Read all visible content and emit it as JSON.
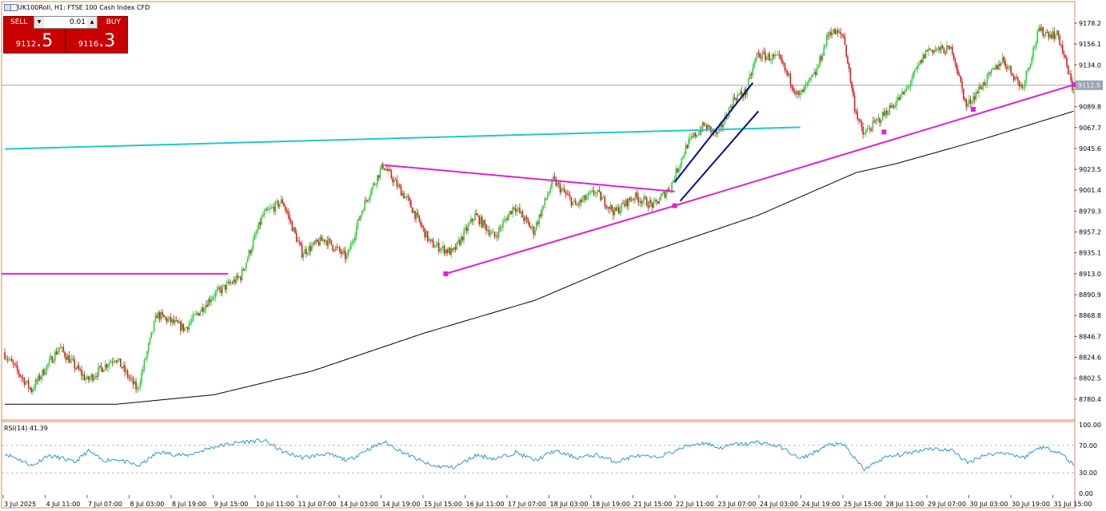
{
  "window": {
    "title": "UK100Roll, H1:  FTSE 100 Cash Index CFD"
  },
  "trade_panel": {
    "sell_label": "SELL",
    "buy_label": "BUY",
    "lot_value": "0.01",
    "sell_price_main": "9112",
    "sell_price_big": ".5",
    "buy_price_main": "9116",
    "buy_price_big": ".3"
  },
  "price_axis": {
    "labels": [
      "9178.2",
      "9156.1",
      "9134.0",
      "9089.8",
      "9067.7",
      "9045.6",
      "9023.5",
      "9001.4",
      "8979.3",
      "8957.2",
      "8935.1",
      "8913.0",
      "8890.9",
      "8868.8",
      "8846.7",
      "8824.6",
      "8802.5",
      "8780.4"
    ],
    "current_price": "9112.5"
  },
  "time_axis": {
    "labels": [
      "3 Jul 2025",
      "4 Jul 11:00",
      "7 Jul 07:00",
      "8 Jul 03:00",
      "8 Jul 19:00",
      "9 Jul 15:00",
      "10 Jul 11:00",
      "11 Jul 07:00",
      "14 Jul 03:00",
      "14 Jul 19:00",
      "15 Jul 15:00",
      "16 Jul 11:00",
      "17 Jul 07:00",
      "18 Jul 03:00",
      "18 Jul 19:00",
      "21 Jul 15:00",
      "22 Jul 11:00",
      "23 Jul 07:00",
      "24 Jul 03:00",
      "24 Jul 19:00",
      "25 Jul 15:00",
      "28 Jul 11:00",
      "29 Jul 07:00",
      "30 Jul 03:00",
      "30 Jul 19:00",
      "31 Jul 15:00"
    ]
  },
  "rsi": {
    "label": "RSI(14) 41.39",
    "axis_labels": [
      "100.00",
      "70.00",
      "30.00",
      "0.00"
    ]
  },
  "colors": {
    "bull": "#2ecc40",
    "bear": "#d81e1e",
    "ma": "#000000",
    "trendline_magenta": "#e020d0",
    "trendline_cyan": "#20c8c8",
    "channel": "#0a0a8c",
    "rsi_line": "#1e8cd2",
    "frame": "#d08a6a"
  },
  "chart_data": {
    "type": "candlestick",
    "symbol": "UK100Roll",
    "timeframe": "H1",
    "ylim": [
      8760,
      9190
    ],
    "anchors": [
      [
        0,
        8830
      ],
      [
        20,
        8790
      ],
      [
        40,
        8835
      ],
      [
        60,
        8800
      ],
      [
        80,
        8825
      ],
      [
        96,
        8790
      ],
      [
        110,
        8870
      ],
      [
        130,
        8855
      ],
      [
        150,
        8890
      ],
      [
        170,
        8910
      ],
      [
        186,
        8975
      ],
      [
        200,
        8990
      ],
      [
        214,
        8935
      ],
      [
        230,
        8950
      ],
      [
        246,
        8930
      ],
      [
        258,
        8985
      ],
      [
        272,
        9028
      ],
      [
        290,
        8990
      ],
      [
        306,
        8945
      ],
      [
        322,
        8935
      ],
      [
        338,
        8975
      ],
      [
        352,
        8952
      ],
      [
        366,
        8985
      ],
      [
        380,
        8958
      ],
      [
        394,
        9012
      ],
      [
        410,
        8985
      ],
      [
        424,
        9000
      ],
      [
        438,
        8978
      ],
      [
        452,
        8995
      ],
      [
        466,
        8985
      ],
      [
        478,
        9005
      ],
      [
        490,
        9050
      ],
      [
        502,
        9070
      ],
      [
        512,
        9060
      ],
      [
        524,
        9100
      ],
      [
        532,
        9105
      ],
      [
        540,
        9145
      ],
      [
        556,
        9140
      ],
      [
        570,
        9100
      ],
      [
        582,
        9125
      ],
      [
        592,
        9170
      ],
      [
        602,
        9165
      ],
      [
        610,
        9090
      ],
      [
        616,
        9060
      ],
      [
        630,
        9080
      ],
      [
        646,
        9105
      ],
      [
        662,
        9150
      ],
      [
        680,
        9150
      ],
      [
        690,
        9090
      ],
      [
        700,
        9110
      ],
      [
        716,
        9140
      ],
      [
        730,
        9110
      ],
      [
        742,
        9170
      ],
      [
        756,
        9165
      ],
      [
        766,
        9110
      ]
    ],
    "moving_average": [
      [
        0,
        8775
      ],
      [
        80,
        8775
      ],
      [
        150,
        8785
      ],
      [
        220,
        8810
      ],
      [
        300,
        8850
      ],
      [
        380,
        8885
      ],
      [
        460,
        8935
      ],
      [
        540,
        8975
      ],
      [
        610,
        9020
      ],
      [
        640,
        9030
      ],
      [
        700,
        9055
      ],
      [
        766,
        9085
      ]
    ],
    "rsi_values": [
      [
        0,
        58
      ],
      [
        10,
        50
      ],
      [
        20,
        40
      ],
      [
        30,
        55
      ],
      [
        40,
        52
      ],
      [
        50,
        45
      ],
      [
        60,
        62
      ],
      [
        70,
        48
      ],
      [
        80,
        50
      ],
      [
        96,
        40
      ],
      [
        110,
        60
      ],
      [
        130,
        55
      ],
      [
        150,
        68
      ],
      [
        170,
        75
      ],
      [
        186,
        77
      ],
      [
        200,
        60
      ],
      [
        214,
        52
      ],
      [
        230,
        58
      ],
      [
        246,
        48
      ],
      [
        258,
        62
      ],
      [
        272,
        75
      ],
      [
        290,
        55
      ],
      [
        306,
        40
      ],
      [
        322,
        38
      ],
      [
        338,
        56
      ],
      [
        352,
        50
      ],
      [
        366,
        60
      ],
      [
        380,
        48
      ],
      [
        394,
        62
      ],
      [
        410,
        52
      ],
      [
        424,
        56
      ],
      [
        438,
        46
      ],
      [
        452,
        55
      ],
      [
        466,
        52
      ],
      [
        478,
        60
      ],
      [
        490,
        70
      ],
      [
        502,
        74
      ],
      [
        512,
        66
      ],
      [
        524,
        72
      ],
      [
        532,
        72
      ],
      [
        540,
        75
      ],
      [
        556,
        68
      ],
      [
        570,
        50
      ],
      [
        582,
        62
      ],
      [
        592,
        72
      ],
      [
        602,
        70
      ],
      [
        610,
        48
      ],
      [
        616,
        35
      ],
      [
        630,
        52
      ],
      [
        646,
        58
      ],
      [
        662,
        66
      ],
      [
        680,
        62
      ],
      [
        690,
        44
      ],
      [
        700,
        55
      ],
      [
        716,
        60
      ],
      [
        730,
        52
      ],
      [
        742,
        68
      ],
      [
        756,
        60
      ],
      [
        766,
        41.39
      ]
    ],
    "drawings": [
      {
        "kind": "hline",
        "color": "magenta",
        "price": 8913,
        "from": 0,
        "to": 160
      },
      {
        "kind": "trend",
        "color": "cyan",
        "p1": [
          0,
          9045
        ],
        "p2": [
          570,
          9068
        ]
      },
      {
        "kind": "trend",
        "color": "magenta",
        "p1": [
          272,
          9028
        ],
        "p2": [
          480,
          9000
        ]
      },
      {
        "kind": "trend",
        "color": "magenta",
        "p1": [
          316,
          8913
        ],
        "p2": [
          480,
          8985
        ]
      },
      {
        "kind": "trend",
        "color": "magenta",
        "p1": [
          480,
          8985
        ],
        "p2": [
          766,
          9113
        ]
      },
      {
        "kind": "trend",
        "color": "navy",
        "p1": [
          480,
          9010
        ],
        "p2": [
          536,
          9115
        ]
      },
      {
        "kind": "trend",
        "color": "navy",
        "p1": [
          484,
          8990
        ],
        "p2": [
          540,
          9085
        ]
      }
    ],
    "bars": 767
  }
}
